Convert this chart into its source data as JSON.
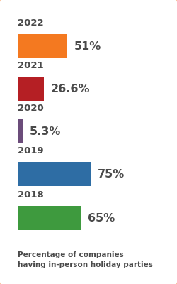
{
  "years": [
    "2022",
    "2021",
    "2020",
    "2019",
    "2018"
  ],
  "values": [
    51,
    26.6,
    5.3,
    75,
    65
  ],
  "labels": [
    "51%",
    "26.6%",
    "5.3%",
    "75%",
    "65%"
  ],
  "bar_colors": [
    "#F47920",
    "#B51F24",
    "#6B4C7A",
    "#2E6DA4",
    "#3E9A3E"
  ],
  "max_val": 100,
  "background_color": "#FFFFFF",
  "border_color": "#F47920",
  "text_color": "#4A4A4A",
  "caption": "Percentage of companies\nhaving in-person holiday parties",
  "label_fontsize": 11.5,
  "year_fontsize": 9.5,
  "caption_fontsize": 7.5
}
